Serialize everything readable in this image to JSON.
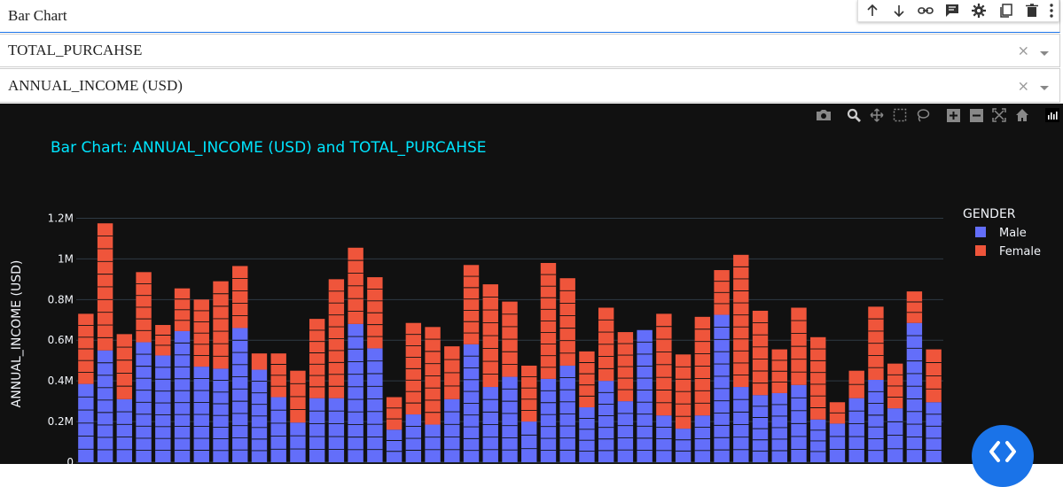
{
  "fields": {
    "chart_type": "Bar Chart",
    "y_column": "TOTAL_PURCAHSE",
    "x_column": "ANNUAL_INCOME (USD)",
    "clear_glyph": "×"
  },
  "toolbar_icons": [
    "arrow-up-icon",
    "arrow-down-icon",
    "link-icon",
    "comment-icon",
    "gear-icon",
    "copy-icon",
    "trash-icon",
    "more-vertical-icon"
  ],
  "modebar_icons": [
    "camera-icon",
    "zoom-icon",
    "pan-icon",
    "box-select-icon",
    "lasso-icon",
    "zoom-in-icon",
    "zoom-out-icon",
    "autoscale-icon",
    "home-icon",
    "plotly-logo-icon"
  ],
  "colors": {
    "male": "#636efa",
    "female": "#ef553b",
    "plot_bg": "#111111",
    "title": "#00e5ff",
    "accent": "#1a73e8"
  },
  "chart_data": {
    "type": "bar",
    "stacked": true,
    "title": "Bar Chart: ANNUAL_INCOME (USD) and TOTAL_PURCAHSE",
    "ylabel": "ANNUAL_INCOME (USD)",
    "xlabel": "",
    "ylim": [
      0,
      1250000
    ],
    "yticks": [
      0,
      200000,
      400000,
      600000,
      800000,
      1000000,
      1200000
    ],
    "ytick_labels": [
      "0",
      "0.2M",
      "0.4M",
      "0.6M",
      "0.8M",
      "1M",
      "1.2M"
    ],
    "grid": true,
    "legend": {
      "title": "GENDER",
      "placement": "top-right"
    },
    "series": [
      {
        "name": "Male",
        "values": [
          385000,
          550000,
          310000,
          590000,
          525000,
          645000,
          470000,
          460000,
          660000,
          455000,
          320000,
          195000,
          315000,
          315000,
          680000,
          560000,
          160000,
          235000,
          185000,
          310000,
          580000,
          370000,
          420000,
          200000,
          410000,
          475000,
          270000,
          400000,
          300000,
          650000,
          230000,
          165000,
          230000,
          725000,
          370000,
          330000,
          340000,
          380000,
          210000,
          190000,
          315000,
          405000,
          265000,
          685000,
          295000
        ]
      },
      {
        "name": "Female",
        "values": [
          345000,
          625000,
          320000,
          345000,
          150000,
          210000,
          330000,
          430000,
          305000,
          80000,
          215000,
          255000,
          390000,
          585000,
          375000,
          350000,
          160000,
          450000,
          480000,
          260000,
          390000,
          505000,
          370000,
          275000,
          570000,
          430000,
          275000,
          360000,
          340000,
          0,
          500000,
          365000,
          485000,
          220000,
          650000,
          415000,
          215000,
          380000,
          405000,
          105000,
          135000,
          360000,
          220000,
          155000,
          260000
        ]
      }
    ]
  }
}
